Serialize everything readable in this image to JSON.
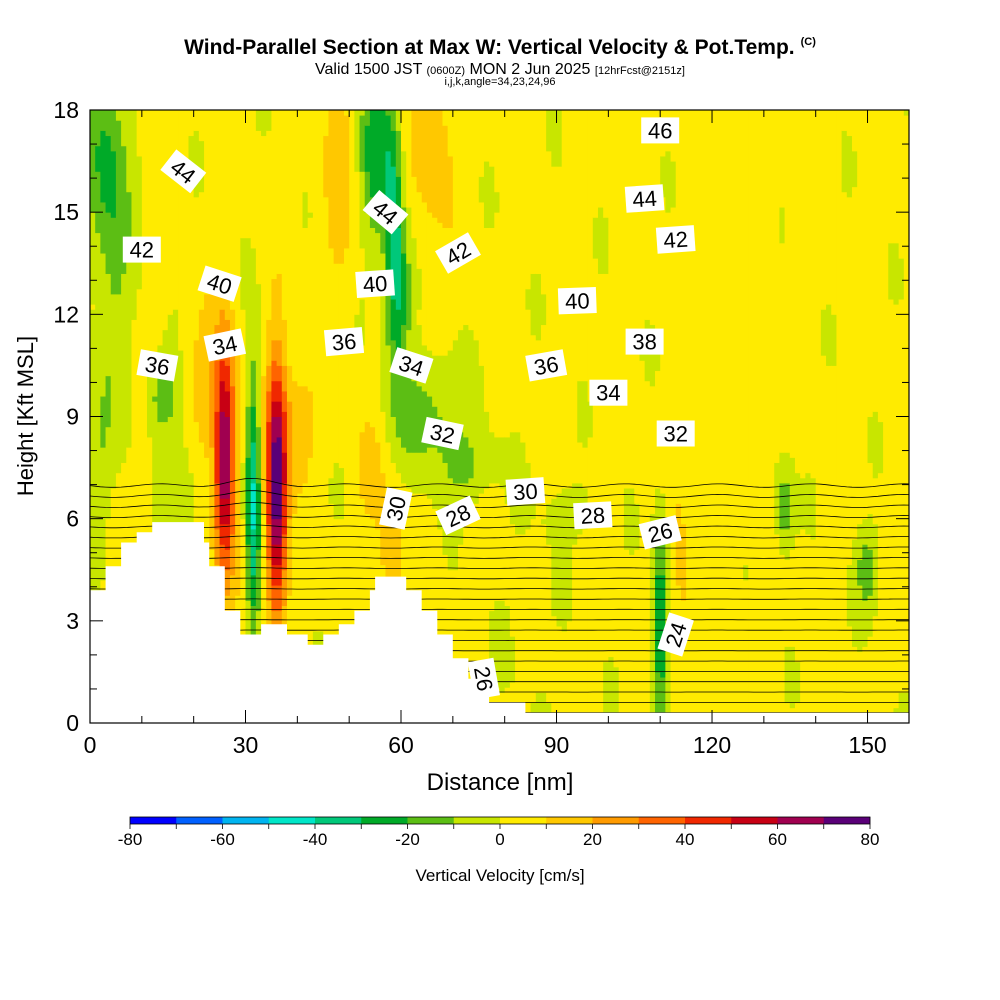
{
  "header": {
    "title": "Wind-Parallel Section at Max W: Vertical Velocity & Pot.Temp.",
    "copyright_mark": "(C)",
    "valid_prefix": "Valid 1500 JST",
    "valid_utc": "(0600Z)",
    "valid_date": "MON 2 Jun 2025",
    "forecast_info": "[12hrFcst@2151z]",
    "ijk_line": "i,j,k,angle=34,23,24,96"
  },
  "chart_data": {
    "type": "heatmap",
    "title": "Wind-Parallel Section at Max W: Vertical Velocity & Pot.Temp.",
    "xlabel": "Distance [nm]",
    "ylabel": "Height [Kft MSL]",
    "xlim": [
      0,
      158
    ],
    "ylim": [
      0,
      18
    ],
    "x_ticks": [
      "0",
      "30",
      "60",
      "90",
      "120",
      "150"
    ],
    "x_tick_values": [
      0,
      30,
      60,
      90,
      120,
      150
    ],
    "y_ticks": [
      "0",
      "3",
      "6",
      "9",
      "12",
      "15",
      "18"
    ],
    "y_tick_values": [
      0,
      3,
      6,
      9,
      12,
      15,
      18
    ],
    "colorbar": {
      "label": "Vertical Velocity [cm/s]",
      "tick_labels": [
        "-80",
        "-60",
        "-40",
        "-20",
        "0",
        "20",
        "40",
        "60",
        "80"
      ],
      "levels": [
        -80,
        -70,
        -60,
        -50,
        -40,
        -30,
        -20,
        -10,
        0,
        10,
        20,
        30,
        40,
        50,
        60,
        70,
        80
      ],
      "colors": [
        "#0000ff",
        "#0060ff",
        "#00b4f0",
        "#00e6c8",
        "#00c87a",
        "#00aa28",
        "#5cbe14",
        "#c8e600",
        "#ffeb00",
        "#ffc800",
        "#ff9b00",
        "#ff6400",
        "#f02800",
        "#c80014",
        "#a00050",
        "#5a0078"
      ]
    },
    "terrain": [
      [
        0,
        3.9
      ],
      [
        3,
        3.9
      ],
      [
        3,
        4.6
      ],
      [
        6,
        4.6
      ],
      [
        6,
        5.3
      ],
      [
        9,
        5.3
      ],
      [
        9,
        5.6
      ],
      [
        12,
        5.6
      ],
      [
        12,
        5.9
      ],
      [
        22,
        5.9
      ],
      [
        22,
        5.3
      ],
      [
        23,
        5.3
      ],
      [
        23,
        4.6
      ],
      [
        26,
        4.6
      ],
      [
        26,
        3.3
      ],
      [
        29,
        3.3
      ],
      [
        29,
        2.6
      ],
      [
        33,
        2.6
      ],
      [
        33,
        2.9
      ],
      [
        38,
        2.9
      ],
      [
        38,
        2.6
      ],
      [
        42,
        2.6
      ],
      [
        42,
        2.3
      ],
      [
        45,
        2.3
      ],
      [
        45,
        2.6
      ],
      [
        48,
        2.6
      ],
      [
        48,
        2.9
      ],
      [
        51,
        2.9
      ],
      [
        51,
        3.3
      ],
      [
        54,
        3.3
      ],
      [
        54,
        3.9
      ],
      [
        55,
        3.9
      ],
      [
        55,
        4.3
      ],
      [
        61,
        4.3
      ],
      [
        61,
        3.9
      ],
      [
        64,
        3.9
      ],
      [
        64,
        3.3
      ],
      [
        67,
        3.3
      ],
      [
        67,
        2.6
      ],
      [
        70,
        2.6
      ],
      [
        70,
        1.9
      ],
      [
        73,
        1.9
      ],
      [
        73,
        1.3
      ],
      [
        77,
        1.3
      ],
      [
        77,
        0.6
      ],
      [
        84,
        0.6
      ],
      [
        84,
        0.3
      ],
      [
        158,
        0.3
      ]
    ],
    "theta_labels": [
      {
        "label": "44",
        "x": 18,
        "y": 16.2,
        "rot": 38
      },
      {
        "label": "44",
        "x": 57,
        "y": 15.0,
        "rot": 40
      },
      {
        "label": "46",
        "x": 110,
        "y": 17.4,
        "rot": 0
      },
      {
        "label": "44",
        "x": 107,
        "y": 15.4,
        "rot": -4
      },
      {
        "label": "42",
        "x": 10,
        "y": 13.9,
        "rot": 0
      },
      {
        "label": "42",
        "x": 71,
        "y": 13.8,
        "rot": -30
      },
      {
        "label": "42",
        "x": 113,
        "y": 14.2,
        "rot": -4
      },
      {
        "label": "40",
        "x": 25,
        "y": 12.9,
        "rot": 18
      },
      {
        "label": "40",
        "x": 55,
        "y": 12.9,
        "rot": -4
      },
      {
        "label": "40",
        "x": 94,
        "y": 12.4,
        "rot": -2
      },
      {
        "label": "34",
        "x": 26,
        "y": 11.1,
        "rot": -12
      },
      {
        "label": "36",
        "x": 49,
        "y": 11.2,
        "rot": -5
      },
      {
        "label": "38",
        "x": 107,
        "y": 11.2,
        "rot": 0
      },
      {
        "label": "36",
        "x": 13,
        "y": 10.5,
        "rot": 10
      },
      {
        "label": "34",
        "x": 62,
        "y": 10.5,
        "rot": 18
      },
      {
        "label": "36",
        "x": 88,
        "y": 10.5,
        "rot": -10
      },
      {
        "label": "34",
        "x": 100,
        "y": 9.7,
        "rot": 0
      },
      {
        "label": "32",
        "x": 68,
        "y": 8.5,
        "rot": 12
      },
      {
        "label": "32",
        "x": 113,
        "y": 8.5,
        "rot": 0
      },
      {
        "label": "30",
        "x": 84,
        "y": 6.8,
        "rot": -4
      },
      {
        "label": "30",
        "x": 59,
        "y": 6.3,
        "rot": -78
      },
      {
        "label": "28",
        "x": 71,
        "y": 6.1,
        "rot": -25
      },
      {
        "label": "28",
        "x": 97,
        "y": 6.1,
        "rot": -3
      },
      {
        "label": "26",
        "x": 110,
        "y": 5.6,
        "rot": -14
      },
      {
        "label": "24",
        "x": 113,
        "y": 2.6,
        "rot": -72
      },
      {
        "label": "26",
        "x": 76,
        "y": 1.3,
        "rot": 80
      }
    ]
  }
}
